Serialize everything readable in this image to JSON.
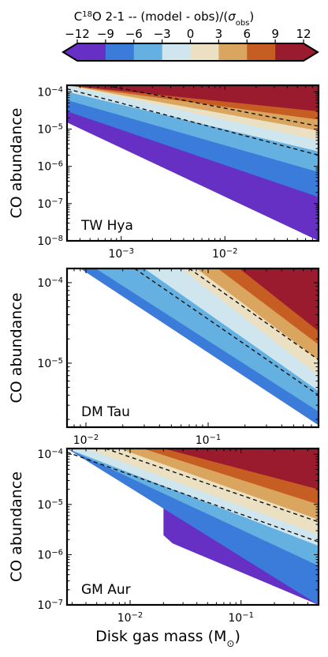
{
  "colorbar": {
    "title_prefix": "C",
    "title_sup": "18",
    "title_mid": "O 2-1 -- (model - obs)/(",
    "title_sigma": "σ",
    "title_sub": "obs",
    "title_suffix": ")",
    "ticks": [
      "−12",
      "−9",
      "−6",
      "−3",
      "0",
      "3",
      "6",
      "9",
      "12"
    ],
    "levels": [
      -12,
      -9,
      -6,
      -3,
      0,
      3,
      6,
      9,
      12
    ],
    "colors": [
      "#6630c4",
      "#3b7bd9",
      "#63b0e1",
      "#d0e6ef",
      "#ece0c3",
      "#d9a55f",
      "#c65d22",
      "#9a1b2d"
    ],
    "extends": "both"
  },
  "x_axis_label": "Disk gas mass (M",
  "x_axis_label_sym": "⊙",
  "x_axis_label_end": ")",
  "chart_data": [
    {
      "type": "contour",
      "name": "TW Hya",
      "xscale": "log",
      "yscale": "log",
      "xlim": [
        0.0003,
        0.08
      ],
      "ylim": [
        1e-08,
        0.00015
      ],
      "ylabel": "CO abundance",
      "x_ticks": [
        {
          "v": 0.001,
          "m": "10",
          "e": "−3"
        },
        {
          "v": 0.01,
          "m": "10",
          "e": "−2"
        }
      ],
      "y_ticks": [
        {
          "v": 1e-08,
          "m": "10",
          "e": "−8"
        },
        {
          "v": 1e-07,
          "m": "10",
          "e": "−7"
        },
        {
          "v": 1e-06,
          "m": "10",
          "e": "−6"
        },
        {
          "v": 1e-05,
          "m": "10",
          "e": "−5"
        },
        {
          "v": 0.0001,
          "m": "10",
          "e": "−4"
        }
      ],
      "boundary_bottom": [
        [
          0.0003,
          1.5e-05
        ],
        [
          0.08,
          1e-08
        ]
      ],
      "bands": [
        {
          "level": -12,
          "x": [
            0.0003,
            0.08
          ],
          "y": [
            1.5e-05,
            1e-08
          ]
        },
        {
          "level": -9,
          "x": [
            0.0003,
            0.08
          ],
          "y": [
            3e-05,
            1.5e-07
          ]
        },
        {
          "level": -6,
          "x": [
            0.0003,
            0.08
          ],
          "y": [
            6e-05,
            7e-07
          ]
        },
        {
          "level": -3,
          "x": [
            0.0003,
            0.08
          ],
          "y": [
            0.0001,
            2.5e-06
          ]
        },
        {
          "level": 0,
          "x": [
            0.0003,
            0.08
          ],
          "y": [
            0.00015,
            5e-06
          ]
        },
        {
          "level": 3,
          "x": [
            0.0003,
            0.08
          ],
          "y": [
            0.00015,
            9e-06
          ]
        },
        {
          "level": 6,
          "x": [
            0.0003,
            0.08
          ],
          "y": [
            0.00015,
            1.8e-05
          ]
        },
        {
          "level": 9,
          "x": [
            0.0003,
            0.08
          ],
          "y": [
            0.00015,
            3e-05
          ]
        }
      ],
      "dashed_contours": [
        {
          "x": [
            0.0003,
            0.08
          ],
          "y": [
            0.00012,
            2e-06
          ]
        },
        {
          "x": [
            0.0007,
            0.08
          ],
          "y": [
            0.00015,
            1.2e-05
          ]
        }
      ]
    },
    {
      "type": "contour",
      "name": "DM Tau",
      "xscale": "log",
      "yscale": "log",
      "xlim": [
        0.007,
        0.8
      ],
      "ylim": [
        1.6e-06,
        0.00015
      ],
      "ylabel": "CO abundance",
      "x_ticks": [
        {
          "v": 0.01,
          "m": "10",
          "e": "−2"
        },
        {
          "v": 0.1,
          "m": "10",
          "e": "−1"
        }
      ],
      "y_ticks": [
        {
          "v": 1e-05,
          "m": "10",
          "e": "−5"
        },
        {
          "v": 0.0001,
          "m": "10",
          "e": "−4"
        }
      ],
      "boundary_bottom": [
        [
          0.009,
          0.00015
        ],
        [
          0.035,
          4e-06
        ],
        [
          0.8,
          1.7e-06
        ]
      ],
      "bands": [
        {
          "level": -12,
          "x": [
            0.009,
            0.8
          ],
          "y": [
            0.00015,
            1.7e-06
          ]
        },
        {
          "level": -9,
          "x": [
            0.009,
            0.8
          ],
          "y": [
            0.00015,
            1.7e-06
          ]
        },
        {
          "level": -6,
          "x": [
            0.012,
            0.8
          ],
          "y": [
            0.00015,
            2.5e-06
          ]
        },
        {
          "level": -3,
          "x": [
            0.03,
            0.8
          ],
          "y": [
            0.00015,
            4.5e-06
          ]
        },
        {
          "level": 0,
          "x": [
            0.06,
            0.8
          ],
          "y": [
            0.00015,
            7e-06
          ]
        },
        {
          "level": 3,
          "x": [
            0.08,
            0.8
          ],
          "y": [
            0.00015,
            1.1e-05
          ]
        },
        {
          "level": 6,
          "x": [
            0.12,
            0.8
          ],
          "y": [
            0.00015,
            1.7e-05
          ]
        },
        {
          "level": 9,
          "x": [
            0.18,
            0.8
          ],
          "y": [
            0.00015,
            2.5e-05
          ]
        }
      ],
      "dashed_contours": [
        {
          "x": [
            0.025,
            0.8
          ],
          "y": [
            0.00015,
            4e-06
          ]
        },
        {
          "x": [
            0.07,
            0.8
          ],
          "y": [
            0.00015,
            1.1e-05
          ]
        }
      ]
    },
    {
      "type": "contour",
      "name": "GM Aur",
      "xscale": "log",
      "yscale": "log",
      "xlim": [
        0.0027,
        0.5
      ],
      "ylim": [
        1e-07,
        0.00013
      ],
      "ylabel": "CO abundance",
      "x_ticks": [
        {
          "v": 0.01,
          "m": "10",
          "e": "−2"
        },
        {
          "v": 0.1,
          "m": "10",
          "e": "−1"
        }
      ],
      "y_ticks": [
        {
          "v": 1e-07,
          "m": "10",
          "e": "−7"
        },
        {
          "v": 1e-06,
          "m": "10",
          "e": "−6"
        },
        {
          "v": 1e-05,
          "m": "10",
          "e": "−5"
        },
        {
          "v": 0.0001,
          "m": "10",
          "e": "−4"
        }
      ],
      "boundary_bottom": [
        [
          0.0027,
          0.00013
        ],
        [
          0.1,
          1e-07
        ]
      ],
      "bands": [
        {
          "level": -12,
          "x": [
            0.02,
            0.5
          ],
          "y": [
            2e-06,
            1e-07
          ]
        },
        {
          "level": -9,
          "x": [
            0.0027,
            0.5
          ],
          "y": [
            0.00013,
            1e-07
          ]
        },
        {
          "level": -6,
          "x": [
            0.0027,
            0.5
          ],
          "y": [
            0.00013,
            6e-07
          ]
        },
        {
          "level": -3,
          "x": [
            0.0027,
            0.5
          ],
          "y": [
            0.00013,
            1.5e-06
          ]
        },
        {
          "level": 0,
          "x": [
            0.004,
            0.5
          ],
          "y": [
            0.00013,
            2.5e-06
          ]
        },
        {
          "level": 3,
          "x": [
            0.008,
            0.5
          ],
          "y": [
            0.00013,
            5e-06
          ]
        },
        {
          "level": 6,
          "x": [
            0.013,
            0.5
          ],
          "y": [
            0.00013,
            1e-05
          ]
        },
        {
          "level": 9,
          "x": [
            0.02,
            0.5
          ],
          "y": [
            0.00013,
            2e-05
          ]
        }
      ],
      "dashed_contours": [
        {
          "x": [
            0.0027,
            0.5
          ],
          "y": [
            0.00011,
            1.8e-06
          ]
        },
        {
          "x": [
            0.006,
            0.5
          ],
          "y": [
            0.00013,
            4.5e-06
          ]
        }
      ]
    }
  ]
}
